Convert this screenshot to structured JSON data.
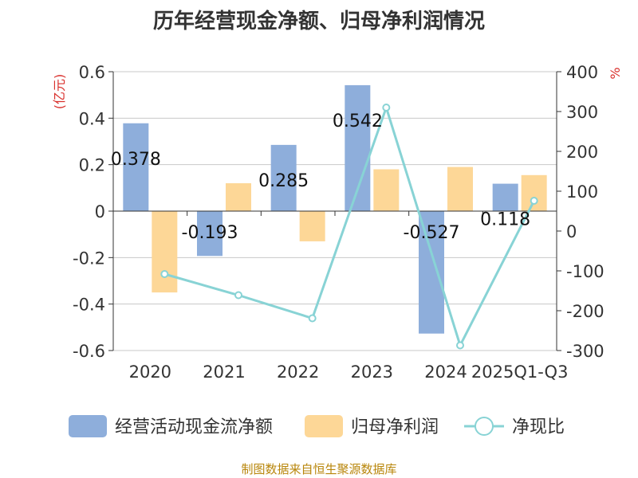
{
  "chart_data": {
    "type": "bar",
    "title": "历年经营现金净额、归母净利润情况",
    "categories": [
      "2020",
      "2021",
      "2022",
      "2023",
      "2024",
      "2025Q1-Q3"
    ],
    "series": [
      {
        "name": "经营活动现金流净额",
        "kind": "bar",
        "axis": "left",
        "color": "#8eaedb",
        "values": [
          0.378,
          -0.193,
          0.285,
          0.542,
          -0.527,
          0.118
        ],
        "labels": [
          "0.378",
          "-0.193",
          "0.285",
          "0.542",
          "-0.527",
          "0.118"
        ]
      },
      {
        "name": "归母净利润",
        "kind": "bar",
        "axis": "left",
        "color": "#fdd797",
        "values": [
          -0.35,
          0.12,
          -0.13,
          0.18,
          0.19,
          0.155
        ]
      },
      {
        "name": "净现比",
        "kind": "line",
        "axis": "right",
        "color": "#88d3d5",
        "values": [
          -108,
          -161,
          -219,
          310,
          -287,
          76
        ]
      }
    ],
    "left_axis": {
      "label": "(亿元)",
      "min": -0.6,
      "max": 0.6,
      "ticks": [
        "0.6",
        "0.4",
        "0.2",
        "0",
        "-0.2",
        "-0.4",
        "-0.6"
      ],
      "tick_values": [
        0.6,
        0.4,
        0.2,
        0,
        -0.2,
        -0.4,
        -0.6
      ]
    },
    "right_axis": {
      "label": "%",
      "min": -300,
      "max": 400,
      "ticks": [
        "400",
        "300",
        "200",
        "100",
        "0",
        "-100",
        "-200",
        "-300"
      ],
      "tick_values": [
        400,
        300,
        200,
        100,
        0,
        -100,
        -200,
        -300
      ]
    },
    "label_color": "#d9302c",
    "grid": true,
    "legend_position": "bottom"
  },
  "source": "制图数据来自恒生聚源数据库"
}
